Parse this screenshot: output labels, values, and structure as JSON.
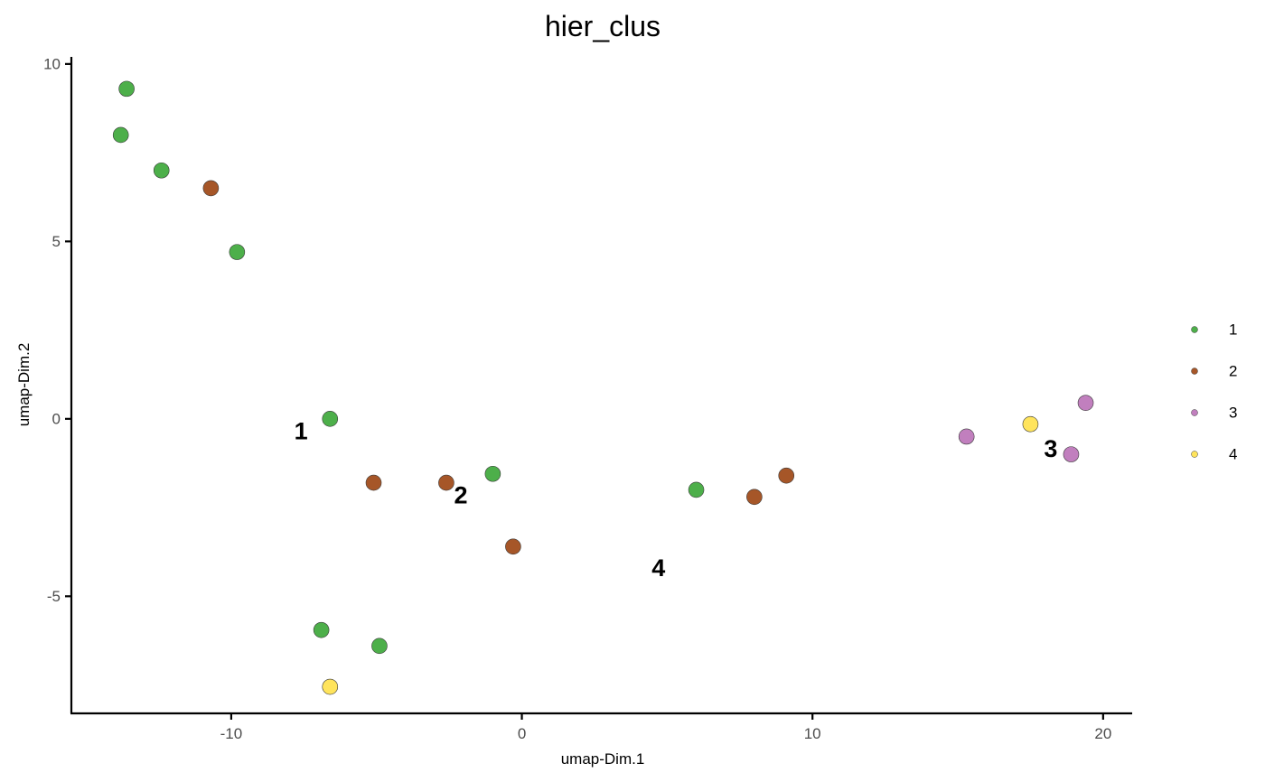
{
  "chart_data": {
    "type": "scatter",
    "title": "hier_clus",
    "xlabel": "umap-Dim.1",
    "ylabel": "umap-Dim.2",
    "xlim": [
      -15.5,
      21
    ],
    "ylim": [
      -8.3,
      10.2
    ],
    "xticks": [
      -10,
      0,
      10,
      20
    ],
    "xtick_labels": [
      "-10",
      "0",
      "10",
      "20"
    ],
    "yticks": [
      -5,
      0,
      5,
      10
    ],
    "ytick_labels": [
      "-5",
      "0",
      "5",
      "10"
    ],
    "grid": false,
    "legend_position": "right",
    "series": [
      {
        "name": "1",
        "color": "#4daf4a",
        "points": [
          [
            -13.6,
            9.3
          ],
          [
            -13.8,
            8.0
          ],
          [
            -12.4,
            7.0
          ],
          [
            -9.8,
            4.7
          ],
          [
            -6.6,
            0.0
          ],
          [
            -1.0,
            -1.55
          ],
          [
            6.0,
            -2.0
          ],
          [
            -6.9,
            -5.95
          ],
          [
            -4.9,
            -6.4
          ]
        ]
      },
      {
        "name": "2",
        "color": "#a65628",
        "points": [
          [
            -10.7,
            6.5
          ],
          [
            -5.1,
            -1.8
          ],
          [
            -2.6,
            -1.8
          ],
          [
            -0.3,
            -3.6
          ],
          [
            8.0,
            -2.2
          ],
          [
            9.1,
            -1.6
          ]
        ]
      },
      {
        "name": "3",
        "color": "#c17fbe",
        "points": [
          [
            15.3,
            -0.5
          ],
          [
            18.9,
            -1.0
          ],
          [
            19.4,
            0.45
          ]
        ]
      },
      {
        "name": "4",
        "color": "#ffe45c",
        "points": [
          [
            -6.6,
            -7.55
          ],
          [
            17.5,
            -0.15
          ]
        ]
      }
    ],
    "cluster_labels": [
      {
        "text": "1",
        "x": -7.6,
        "y": -0.35
      },
      {
        "text": "2",
        "x": -2.1,
        "y": -2.15
      },
      {
        "text": "3",
        "x": 18.2,
        "y": -0.85
      },
      {
        "text": "4",
        "x": 4.7,
        "y": -4.2
      }
    ]
  }
}
